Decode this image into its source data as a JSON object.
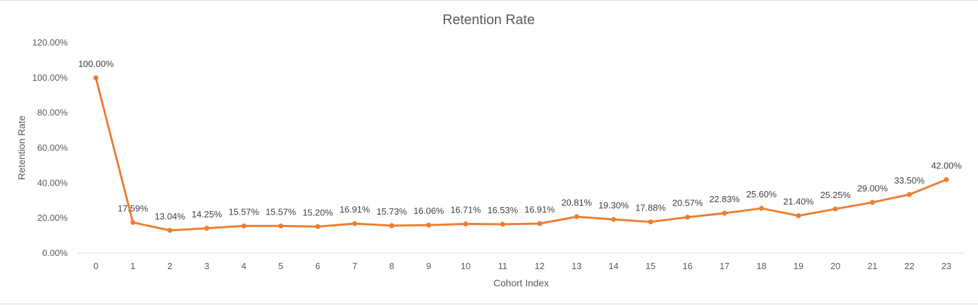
{
  "chart_data": {
    "type": "line",
    "title": "Retention Rate",
    "xlabel": "Cohort Index",
    "ylabel": "Retention Rate",
    "ylim": [
      0,
      120
    ],
    "y_tick_values": [
      0,
      20,
      40,
      60,
      80,
      100,
      120
    ],
    "y_tick_labels": [
      "0.00%",
      "20.00%",
      "40.00%",
      "60.00%",
      "80.00%",
      "100.00%",
      "120.00%"
    ],
    "categories": [
      "0",
      "1",
      "2",
      "3",
      "4",
      "5",
      "6",
      "7",
      "8",
      "9",
      "10",
      "11",
      "12",
      "13",
      "14",
      "15",
      "16",
      "17",
      "18",
      "19",
      "20",
      "21",
      "22",
      "23"
    ],
    "values": [
      100.0,
      17.59,
      13.04,
      14.25,
      15.57,
      15.57,
      15.2,
      16.91,
      15.73,
      16.06,
      16.71,
      16.53,
      16.91,
      20.81,
      19.3,
      17.88,
      20.57,
      22.83,
      25.6,
      21.4,
      25.25,
      29.0,
      33.5,
      42.0
    ],
    "data_labels": [
      "100.00%",
      "17.59%",
      "13.04%",
      "14.25%",
      "15.57%",
      "15.57%",
      "15.20%",
      "16.91%",
      "15.73%",
      "16.06%",
      "16.71%",
      "16.53%",
      "16.91%",
      "20.81%",
      "19.30%",
      "17.88%",
      "20.57%",
      "22.83%",
      "25.60%",
      "21.40%",
      "25.25%",
      "29.00%",
      "33.50%",
      "42.00%"
    ],
    "grid": false,
    "legend": "none",
    "line_color": "#ED7D31",
    "axis_color": "#d9d9d9"
  }
}
